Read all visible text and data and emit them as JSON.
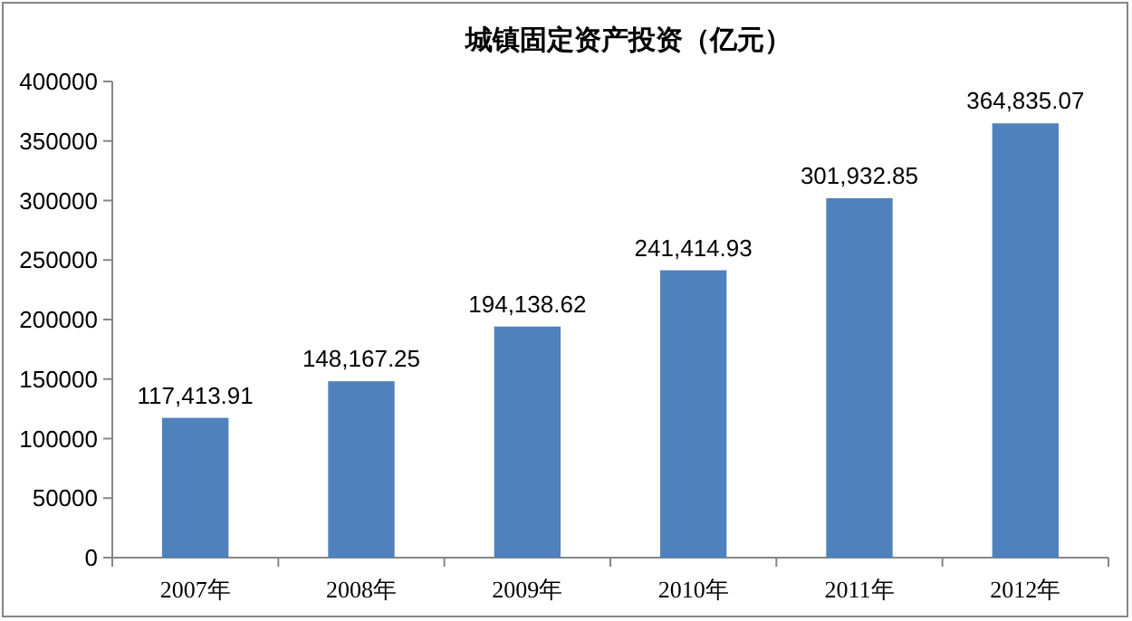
{
  "chart_data": {
    "type": "bar",
    "title": "城镇固定资产投资（亿元）",
    "categories": [
      "2007年",
      "2008年",
      "2009年",
      "2010年",
      "2011年",
      "2012年"
    ],
    "values": [
      117413.91,
      148167.25,
      194138.62,
      241414.93,
      301932.85,
      364835.07
    ],
    "value_labels": [
      "117,413.91",
      "148,167.25",
      "194,138.62",
      "241,414.93",
      "301,932.85",
      "364,835.07"
    ],
    "color": "#4f81bd",
    "ylim": [
      0,
      400000
    ],
    "yticks": [
      0,
      50000,
      100000,
      150000,
      200000,
      250000,
      300000,
      350000,
      400000
    ],
    "grid": false,
    "legend": false
  }
}
